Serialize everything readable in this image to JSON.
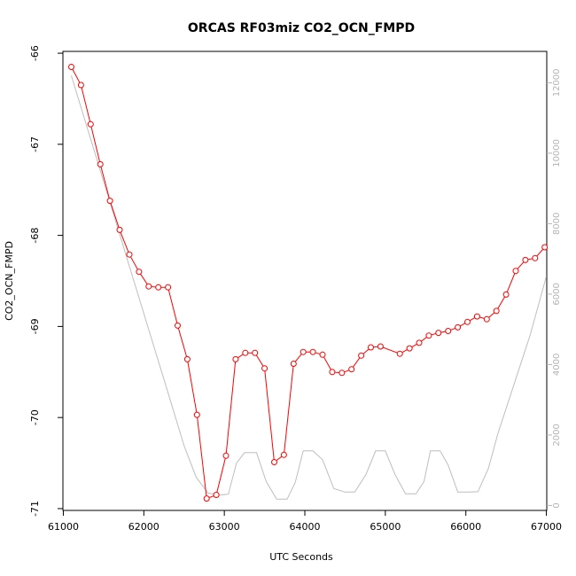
{
  "chart_data": {
    "type": "line",
    "title": "ORCAS RF03miz CO2_OCN_FMPD",
    "xlabel": "UTC Seconds",
    "ylabel": "CO2_OCN_FMPD",
    "xlim": [
      60995,
      67005
    ],
    "ylim": [
      -71.02,
      -65.98
    ],
    "y2lim": [
      -140,
      12890
    ],
    "x_ticks": [
      "61000",
      "62000",
      "63000",
      "64000",
      "65000",
      "66000",
      "67000"
    ],
    "y_ticks": [
      "-66",
      "-67",
      "-68",
      "-69",
      "-70",
      "-71"
    ],
    "y2_ticks": [
      "0",
      "2000",
      "4000",
      "6000",
      "8000",
      "10000",
      "12000"
    ],
    "grid": false,
    "series": [
      {
        "color": "#ff0000",
        "axis": "left",
        "marker": "open-circle",
        "x": [
          61100,
          61220,
          61340,
          61460,
          61580,
          61700,
          61820,
          61940,
          62060,
          62180,
          62300,
          62420,
          62540,
          62660,
          62780,
          62900,
          63020,
          63140,
          63260,
          63380,
          63500,
          63620,
          63740,
          63860,
          63980,
          64100,
          64220,
          64340,
          64460,
          64580,
          64700,
          64820,
          64940,
          65180,
          65300,
          65420,
          65540,
          65660,
          65780,
          65900,
          66020,
          66140,
          66260,
          66380,
          66500,
          66620,
          66740,
          66860,
          66980
        ],
        "values": [
          -66.15,
          -66.35,
          -66.78,
          -67.22,
          -67.62,
          -67.94,
          -68.21,
          -68.4,
          -68.56,
          -68.57,
          -68.57,
          -68.99,
          -69.36,
          -69.97,
          -70.89,
          -70.85,
          -70.42,
          -69.36,
          -69.29,
          -69.29,
          -69.46,
          -70.49,
          -70.41,
          -69.41,
          -69.28,
          -69.28,
          -69.31,
          -69.5,
          -69.51,
          -69.47,
          -69.32,
          -69.23,
          -69.22,
          -69.3,
          -69.24,
          -69.18,
          -69.1,
          -69.07,
          -69.05,
          -69.01,
          -68.95,
          -68.89,
          -68.92,
          -68.83,
          -68.65,
          -68.39,
          -68.27,
          -68.25,
          -68.13
        ]
      },
      {
        "color": "#bebebe",
        "axis": "right",
        "x": [
          61100,
          61300,
          61500,
          61700,
          61900,
          62100,
          62300,
          62500,
          62650,
          62800,
          62950,
          63050,
          63150,
          63250,
          63400,
          63520,
          63650,
          63780,
          63880,
          63980,
          64100,
          64220,
          64360,
          64500,
          64620,
          64760,
          64880,
          65000,
          65120,
          65250,
          65380,
          65480,
          65560,
          65680,
          65780,
          65900,
          66020,
          66150,
          66280,
          66400,
          66600,
          66800,
          67000
        ],
        "values": [
          12200,
          10700,
          9200,
          7700,
          6200,
          4700,
          3200,
          1700,
          800,
          350,
          300,
          320,
          1200,
          1500,
          1500,
          680,
          180,
          180,
          650,
          1550,
          1550,
          1300,
          480,
          380,
          380,
          880,
          1550,
          1550,
          880,
          330,
          330,
          680,
          1550,
          1550,
          1150,
          380,
          380,
          390,
          1050,
          2050,
          3450,
          4850,
          6500
        ]
      }
    ]
  }
}
